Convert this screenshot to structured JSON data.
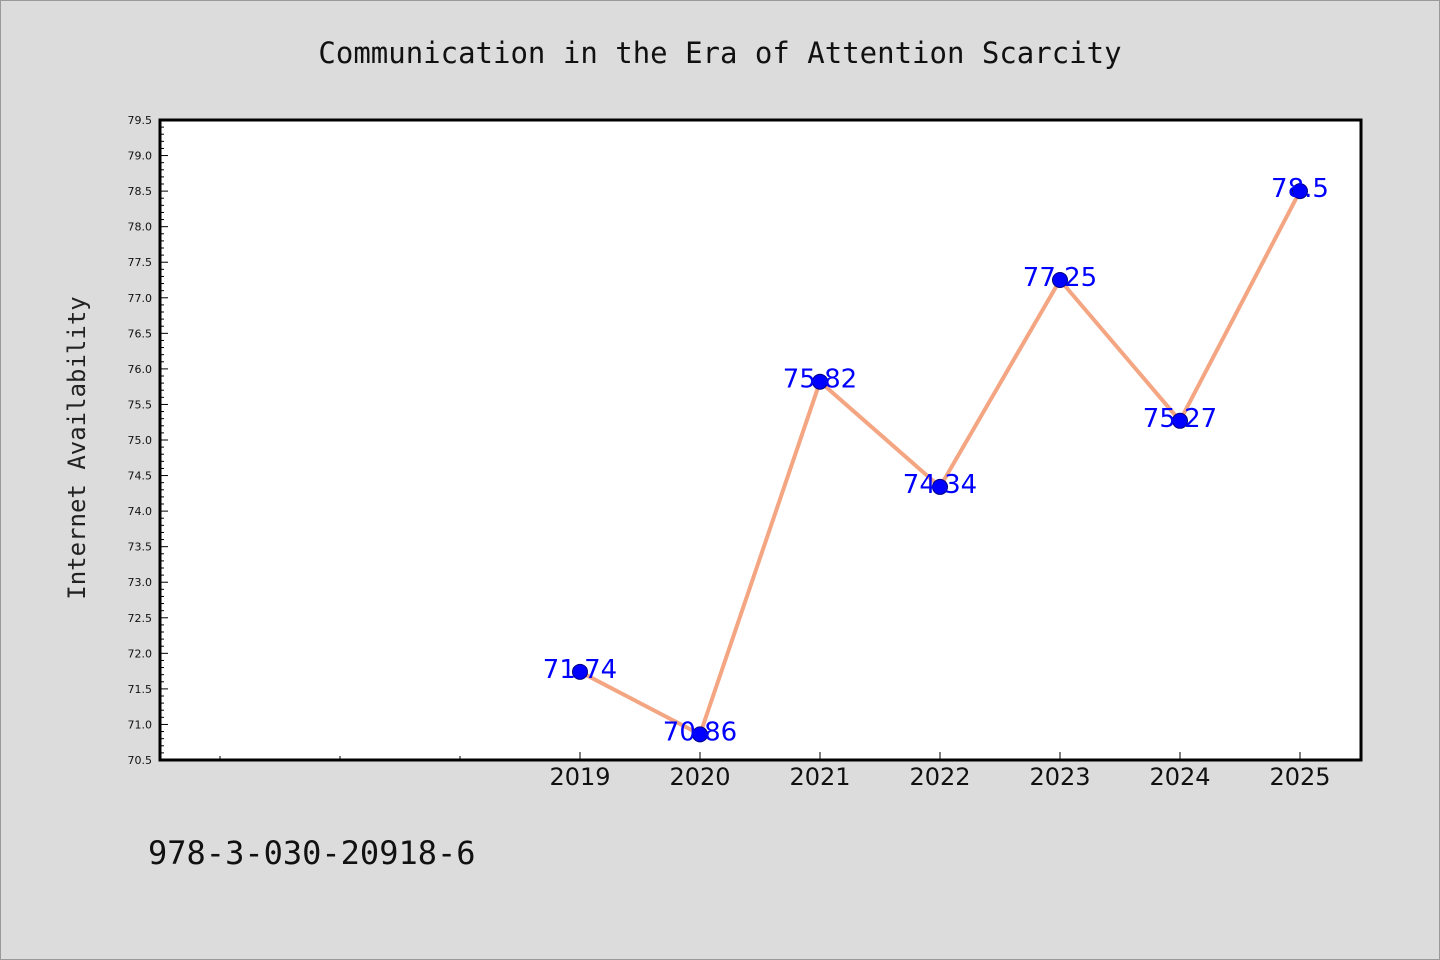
{
  "page": {
    "title": "Communication in the Era of Attention Scarcity",
    "footer_code": "978-3-030-20918-6"
  },
  "chart_data": {
    "type": "line",
    "title": "Communication in the Era of Attention Scarcity",
    "xlabel": "",
    "ylabel": "Internet Availability",
    "categories": [
      "2019",
      "2020",
      "2021",
      "2022",
      "2023",
      "2024",
      "2025"
    ],
    "series": [
      {
        "values": [
          71.74,
          70.86,
          75.82,
          74.34,
          77.25,
          75.27,
          78.5
        ]
      }
    ],
    "data_labels": [
      "71.74",
      "70.86",
      "75.82",
      "74.34",
      "77.25",
      "75.27",
      "78.5"
    ],
    "ylim": [
      70.5,
      79.5
    ],
    "yticks": [
      "70.5",
      "71.0",
      "71.5",
      "72.0",
      "72.5",
      "73.0",
      "73.5",
      "74.0",
      "74.5",
      "75.0",
      "75.5",
      "76.0",
      "76.5",
      "77.0",
      "77.5",
      "78.0",
      "78.5",
      "79.0",
      "79.5"
    ],
    "x_slots_before_first": 3,
    "grid": false,
    "colors": {
      "line": "#f4a582",
      "marker": "#0000ff",
      "marker_edge": "#000080",
      "data_label": "#0000ff",
      "plot_background": "#ffffff",
      "figure_background": "#dcdcdc"
    }
  }
}
